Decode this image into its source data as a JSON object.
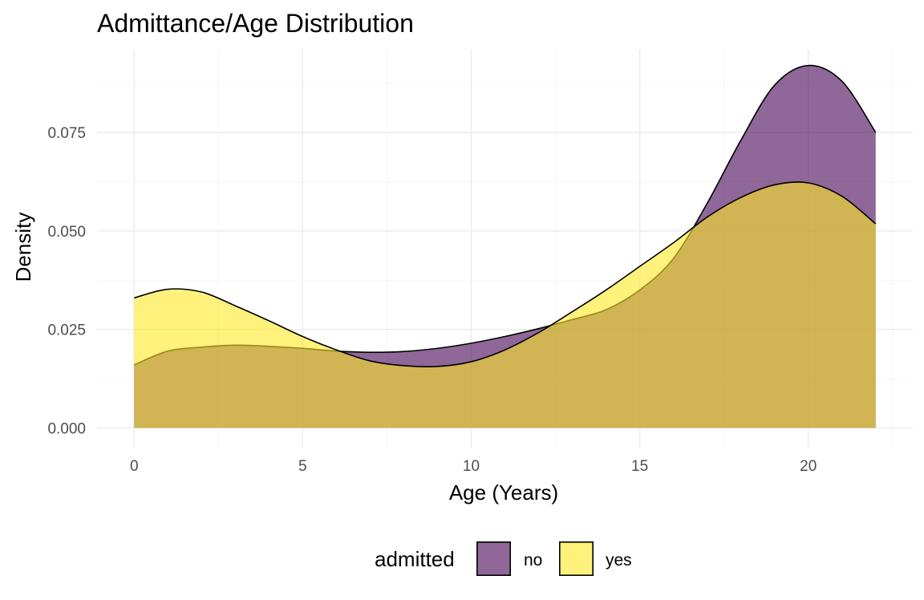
{
  "chart_data": {
    "type": "area",
    "title": "Admittance/Age Distribution",
    "xlabel": "Age (Years)",
    "ylabel": "Density",
    "xlim": [
      -1.1,
      23.1
    ],
    "ylim": [
      -0.005,
      0.096
    ],
    "x_ticks": [
      0,
      5,
      10,
      15,
      20
    ],
    "x_tick_labels": [
      "0",
      "5",
      "10",
      "15",
      "20"
    ],
    "y_ticks": [
      0,
      0.025,
      0.05,
      0.075
    ],
    "y_tick_labels": [
      "0.000",
      "0.025",
      "0.050",
      "0.075"
    ],
    "grid": true,
    "legend": {
      "title": "admitted",
      "position": "bottom"
    },
    "series": [
      {
        "name": "no",
        "color": "#440154",
        "opacity": 0.6,
        "x": [
          0,
          1,
          2,
          3,
          4,
          5,
          6,
          7,
          8,
          9,
          10,
          11,
          12,
          13,
          14,
          15,
          16,
          17,
          18,
          19,
          20,
          21,
          22
        ],
        "y": [
          0.016,
          0.0195,
          0.0205,
          0.021,
          0.0207,
          0.0202,
          0.0195,
          0.0192,
          0.0194,
          0.0202,
          0.0215,
          0.0232,
          0.0252,
          0.0275,
          0.03,
          0.035,
          0.043,
          0.057,
          0.073,
          0.087,
          0.092,
          0.088,
          0.075
        ]
      },
      {
        "name": "yes",
        "color": "#fde725",
        "opacity": 0.6,
        "x": [
          0,
          1,
          2,
          3,
          4,
          5,
          6,
          7,
          8,
          9,
          10,
          11,
          12,
          13,
          14,
          15,
          16,
          17,
          18,
          19,
          20,
          21,
          22
        ],
        "y": [
          0.033,
          0.0352,
          0.0345,
          0.031,
          0.0272,
          0.0232,
          0.0198,
          0.017,
          0.0158,
          0.0156,
          0.0168,
          0.0198,
          0.0242,
          0.0295,
          0.035,
          0.041,
          0.047,
          0.0535,
          0.0585,
          0.0617,
          0.0622,
          0.0588,
          0.0518
        ]
      }
    ]
  }
}
